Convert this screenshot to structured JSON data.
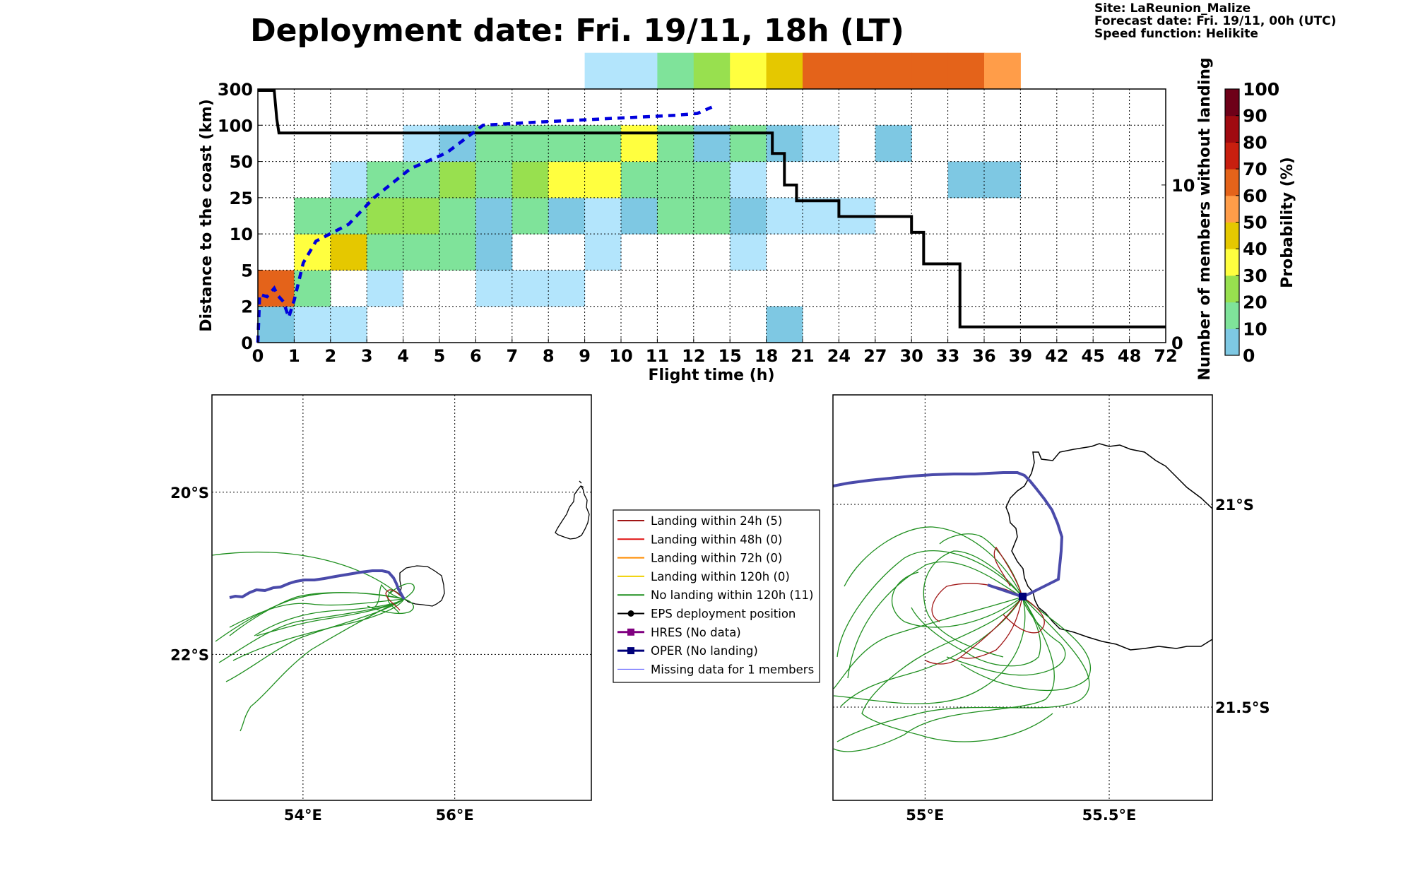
{
  "header": {
    "title": "Deployment date: Fri. 19/11, 18h (LT)",
    "site": "Site: LaReunion_Malize",
    "forecast_date": "Forecast date: Fri. 19/11, 00h (UTC)",
    "speed_function": "Speed function: Helikite"
  },
  "colors": {
    "p0": "#b3e5fc",
    "p10": "#7ec8e3",
    "p20": "#7fe39a",
    "p30": "#98e04f",
    "p40": "#ffff3f",
    "p50": "#e5c800",
    "p60": "#ff9d49",
    "p70": "#e4631a",
    "p80": "#c81f0f",
    "p90": "#a00a10",
    "p100": "#6e0018",
    "distance_line": "#0000dd",
    "members_line": "#000000",
    "track_green": "#1f8f1f",
    "track_red": "#a01515",
    "oper": "#4a4aaa"
  },
  "chart_data": [
    {
      "type": "heatmap",
      "xlabel": "Flight time (h)",
      "ylabel": "Distance to the coast (km)",
      "y2label": "Number of members without landing",
      "colorbar_label": "Probability (%)",
      "x_bins": [
        "0",
        "1",
        "2",
        "3",
        "4",
        "5",
        "6",
        "7",
        "8",
        "9",
        "10",
        "11",
        "12",
        "15",
        "18",
        "21",
        "24",
        "27",
        "30",
        "33",
        "36",
        "39",
        "42",
        "45",
        "48",
        "72"
      ],
      "y_bins": [
        "0",
        "2",
        "5",
        "10",
        "25",
        "50",
        "100",
        "300"
      ],
      "y2_ticks": [
        {
          "value": 0,
          "label": "0"
        },
        {
          "value": 10,
          "label": "10"
        }
      ],
      "y2lim": [
        0,
        16
      ],
      "colorbar_ticks": [
        "0",
        "10",
        "20",
        "30",
        "40",
        "50",
        "60",
        "70",
        "80",
        "90",
        "100"
      ],
      "grid": true,
      "cells": [
        [
          0,
          0,
          10
        ],
        [
          0,
          1,
          70
        ],
        [
          1,
          0,
          0
        ],
        [
          1,
          1,
          20
        ],
        [
          1,
          2,
          40
        ],
        [
          1,
          3,
          20
        ],
        [
          2,
          0,
          0
        ],
        [
          2,
          2,
          50
        ],
        [
          2,
          3,
          20
        ],
        [
          2,
          4,
          0
        ],
        [
          3,
          1,
          0
        ],
        [
          3,
          2,
          20
        ],
        [
          3,
          3,
          30
        ],
        [
          3,
          4,
          20
        ],
        [
          4,
          2,
          20
        ],
        [
          4,
          3,
          30
        ],
        [
          4,
          4,
          20
        ],
        [
          4,
          5,
          0
        ],
        [
          5,
          2,
          20
        ],
        [
          5,
          3,
          20
        ],
        [
          5,
          4,
          30
        ],
        [
          5,
          5,
          10
        ],
        [
          6,
          1,
          0
        ],
        [
          6,
          2,
          10
        ],
        [
          6,
          3,
          10
        ],
        [
          6,
          4,
          20
        ],
        [
          6,
          5,
          20
        ],
        [
          7,
          1,
          0
        ],
        [
          7,
          3,
          20
        ],
        [
          7,
          4,
          30
        ],
        [
          7,
          5,
          20
        ],
        [
          8,
          1,
          0
        ],
        [
          8,
          3,
          10
        ],
        [
          8,
          4,
          40
        ],
        [
          8,
          5,
          20
        ],
        [
          9,
          2,
          0
        ],
        [
          9,
          3,
          0
        ],
        [
          9,
          4,
          40
        ],
        [
          9,
          5,
          20
        ],
        [
          9,
          7,
          0
        ],
        [
          10,
          3,
          10
        ],
        [
          10,
          4,
          20
        ],
        [
          10,
          5,
          40
        ],
        [
          10,
          7,
          0
        ],
        [
          11,
          3,
          20
        ],
        [
          11,
          4,
          20
        ],
        [
          11,
          5,
          20
        ],
        [
          11,
          7,
          20
        ],
        [
          12,
          3,
          20
        ],
        [
          12,
          4,
          20
        ],
        [
          12,
          5,
          10
        ],
        [
          12,
          7,
          30
        ],
        [
          13,
          2,
          0
        ],
        [
          13,
          3,
          10
        ],
        [
          13,
          4,
          0
        ],
        [
          13,
          5,
          20
        ],
        [
          13,
          7,
          40
        ],
        [
          14,
          0,
          10
        ],
        [
          14,
          3,
          0
        ],
        [
          14,
          5,
          10
        ],
        [
          14,
          7,
          50
        ],
        [
          15,
          3,
          0
        ],
        [
          15,
          5,
          0
        ],
        [
          15,
          7,
          70
        ],
        [
          16,
          3,
          0
        ],
        [
          16,
          7,
          70
        ],
        [
          17,
          5,
          10
        ],
        [
          17,
          7,
          70
        ],
        [
          18,
          7,
          70
        ],
        [
          19,
          4,
          10
        ],
        [
          19,
          7,
          70
        ],
        [
          20,
          4,
          10
        ],
        [
          20,
          7,
          60
        ]
      ],
      "members_without_landing": [
        {
          "x": 0,
          "y": 16
        },
        {
          "x": 0.45,
          "y": 16
        },
        {
          "x": 0.52,
          "y": 14.2
        },
        {
          "x": 0.58,
          "y": 13.3
        },
        {
          "x": 18,
          "y": 13.3
        },
        {
          "x": 18.5,
          "y": 12
        },
        {
          "x": 19.5,
          "y": 10
        },
        {
          "x": 20.5,
          "y": 9
        },
        {
          "x": 24,
          "y": 8
        },
        {
          "x": 30,
          "y": 7
        },
        {
          "x": 31,
          "y": 5
        },
        {
          "x": 34,
          "y": 1
        },
        {
          "x": 72,
          "y": 1
        }
      ],
      "median_distance_km": [
        {
          "x": 0,
          "y": 0
        },
        {
          "x": 0.05,
          "y": 3
        },
        {
          "x": 0.25,
          "y": 2.8
        },
        {
          "x": 0.45,
          "y": 3.5
        },
        {
          "x": 0.55,
          "y": 2.9
        },
        {
          "x": 0.7,
          "y": 2.4
        },
        {
          "x": 0.85,
          "y": 1.4
        },
        {
          "x": 1,
          "y": 2.5
        },
        {
          "x": 1.25,
          "y": 6
        },
        {
          "x": 1.6,
          "y": 9
        },
        {
          "x": 2.5,
          "y": 14
        },
        {
          "x": 3.2,
          "y": 25
        },
        {
          "x": 4.2,
          "y": 45
        },
        {
          "x": 5.2,
          "y": 62
        },
        {
          "x": 6.2,
          "y": 100
        },
        {
          "x": 7.5,
          "y": 115
        },
        {
          "x": 10,
          "y": 140
        },
        {
          "x": 11.5,
          "y": 155
        },
        {
          "x": 12.3,
          "y": 165
        },
        {
          "x": 13.5,
          "y": 200
        }
      ]
    },
    {
      "type": "map",
      "xticks": [
        {
          "value": 54,
          "label": "54°E"
        },
        {
          "value": 56,
          "label": "56°E"
        }
      ],
      "yticks": [
        {
          "value": -20,
          "label": "20°S"
        },
        {
          "value": -22,
          "label": "22°S"
        }
      ],
      "lon_range": [
        52.8,
        57.8
      ],
      "lat_range": [
        -23.8,
        -18.8
      ]
    },
    {
      "type": "map",
      "xticks": [
        {
          "value": 55,
          "label": "55°E"
        },
        {
          "value": 55.5,
          "label": "55.5°E"
        }
      ],
      "yticks": [
        {
          "value": -21,
          "label": "21°S"
        },
        {
          "value": -21.5,
          "label": "21.5°S"
        }
      ],
      "lon_range": [
        54.75,
        55.78
      ],
      "lat_range": [
        -21.73,
        -20.73
      ]
    }
  ],
  "legend": [
    {
      "label": "Landing within 24h (5)",
      "color": "#a01515",
      "marker": "none",
      "width": 2
    },
    {
      "label": "Landing within 48h (0)",
      "color": "#e01010",
      "marker": "none",
      "width": 2
    },
    {
      "label": "Landing within 72h (0)",
      "color": "#ff8c00",
      "marker": "none",
      "width": 2
    },
    {
      "label": "Landing within 120h (0)",
      "color": "#f0d000",
      "marker": "none",
      "width": 2
    },
    {
      "label": "No landing within 120h (11)",
      "color": "#1f8f1f",
      "marker": "none",
      "width": 2
    },
    {
      "label": "EPS deployment position",
      "color": "#000000",
      "marker": "circle",
      "width": 2
    },
    {
      "label": "HRES (No data)",
      "color": "#800080",
      "marker": "square",
      "width": 3
    },
    {
      "label": "OPER (No landing)",
      "color": "#00007a",
      "marker": "square",
      "width": 3
    },
    {
      "label": "Missing data for 1 members",
      "color": "#5555ff",
      "marker": "none",
      "width": 1
    }
  ]
}
